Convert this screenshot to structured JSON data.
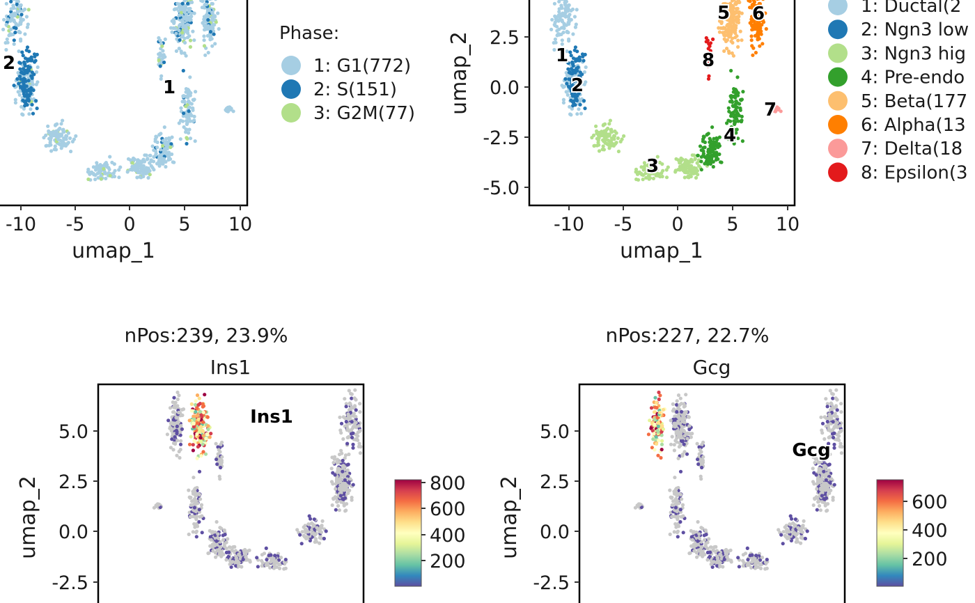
{
  "chart_data": [
    {
      "type": "scatter",
      "xlabel": "umap_1",
      "ylabel": "",
      "x_ticks": [
        "-10",
        "-5",
        "0",
        "5",
        "10"
      ],
      "y_ticks": [],
      "xlim": [
        -13.5,
        10.5
      ],
      "ylim": [
        -5.8,
        7.2
      ],
      "legend": {
        "title": "Phase:",
        "position": "right",
        "entries": [
          {
            "label": "1: G1(772)",
            "color": "#a6cee3"
          },
          {
            "label": "2: S(151)",
            "color": "#1f78b4"
          },
          {
            "label": "3: G2M(77)",
            "color": "#b2df8a"
          }
        ]
      },
      "cluster_labels": [
        {
          "text": "1",
          "x": 3.5,
          "y": 0.0
        },
        {
          "text": "2",
          "x": -11.0,
          "y": 1.0
        }
      ],
      "series": [
        {
          "name": "1: G1(772)",
          "color": "#a6cee3",
          "count": 772
        },
        {
          "name": "2: S(151)",
          "color": "#1f78b4",
          "count": 151
        },
        {
          "name": "3: G2M(77)",
          "color": "#b2df8a",
          "count": 77
        }
      ]
    },
    {
      "type": "scatter",
      "xlabel": "umap_1",
      "ylabel": "umap_2",
      "x_ticks": [
        "-10",
        "-5",
        "0",
        "5",
        "10"
      ],
      "y_ticks": [
        "2.5",
        "0.0",
        "-2.5",
        "-5.0"
      ],
      "xlim": [
        -13.5,
        10.5
      ],
      "ylim": [
        -5.8,
        7.2
      ],
      "legend": {
        "title": "",
        "position": "right",
        "entries": [
          {
            "label": "1: Ductal(2",
            "color": "#a6cee3"
          },
          {
            "label": "2: Ngn3 low",
            "color": "#1f78b4"
          },
          {
            "label": "3: Ngn3 hig",
            "color": "#b2df8a"
          },
          {
            "label": "4: Pre-endo",
            "color": "#33a02c"
          },
          {
            "label": "5: Beta(177",
            "color": "#fdbf6f"
          },
          {
            "label": "6: Alpha(13",
            "color": "#ff7f00"
          },
          {
            "label": "7: Delta(18",
            "color": "#fb9a99"
          },
          {
            "label": "8: Epsilon(3",
            "color": "#e31a1c"
          }
        ]
      },
      "cluster_labels": [
        {
          "text": "1",
          "x": -10.5,
          "y": 1.6
        },
        {
          "text": "2",
          "x": -9.5,
          "y": 0.1
        },
        {
          "text": "3",
          "x": -2.3,
          "y": -3.9
        },
        {
          "text": "4",
          "x": 4.8,
          "y": -2.3
        },
        {
          "text": "5",
          "x": 4.2,
          "y": 3.7
        },
        {
          "text": "6",
          "x": 7.3,
          "y": 3.7
        },
        {
          "text": "7",
          "x": 8.5,
          "y": -1.1
        },
        {
          "text": "8",
          "x": 2.9,
          "y": 1.4
        }
      ]
    },
    {
      "type": "scatter",
      "title": "nPos:239, 23.9%",
      "subtitle": "Ins1",
      "xlabel": "",
      "ylabel": "umap_2",
      "y_ticks": [
        "5.0",
        "2.5",
        "0.0",
        "-2.5"
      ],
      "xlim": [
        -13.5,
        10.5
      ],
      "ylim": [
        -5.8,
        7.2
      ],
      "feature_label": "Ins1",
      "colorbar": {
        "ticks": [
          "800",
          "600",
          "400",
          "200"
        ],
        "min": 0,
        "max": 830,
        "colors": [
          "#5e4fa2",
          "#3288bd",
          "#66c2a5",
          "#abdda4",
          "#e6f598",
          "#ffffbf",
          "#fee08b",
          "#fdae61",
          "#f46d43",
          "#d53e4f",
          "#9e0142"
        ]
      },
      "n_positive": 239,
      "pct_positive": 23.9
    },
    {
      "type": "scatter",
      "title": "nPos:227, 22.7%",
      "subtitle": "Gcg",
      "xlabel": "",
      "ylabel": "umap_2",
      "y_ticks": [
        "5.0",
        "2.5",
        "0.0",
        "-2.5"
      ],
      "xlim": [
        -13.5,
        10.5
      ],
      "ylim": [
        -5.8,
        7.2
      ],
      "feature_label": "Gcg",
      "colorbar": {
        "ticks": [
          "600",
          "400",
          "200"
        ],
        "min": 0,
        "max": 730,
        "colors": [
          "#5e4fa2",
          "#3288bd",
          "#66c2a5",
          "#abdda4",
          "#e6f598",
          "#ffffbf",
          "#fee08b",
          "#fdae61",
          "#f46d43",
          "#d53e4f",
          "#9e0142"
        ]
      },
      "n_positive": 227,
      "pct_positive": 22.7
    }
  ],
  "colors": {
    "background_gray": "#c8c8c8",
    "low_expr": "#5e4fa2"
  }
}
